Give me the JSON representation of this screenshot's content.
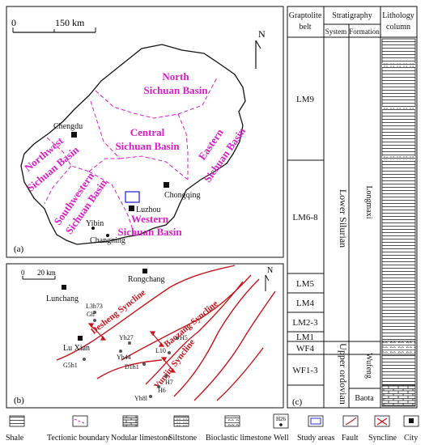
{
  "panel_a": {
    "label": "(a)",
    "scale_left": "0",
    "scale_right": "150 km",
    "north": "N",
    "basins": [
      {
        "line1": "North",
        "line2": "Sichuan Basin"
      },
      {
        "line1": "Central",
        "line2": "Sichuan Basin"
      },
      {
        "line1": "Eastern",
        "line2": "Sichuan Basin"
      },
      {
        "line1": "Northwest",
        "line2": "Sichuan Basin"
      },
      {
        "line1": "Southwestern",
        "line2": "Sichuan Basin"
      },
      {
        "line1": "Western",
        "line2": "Sichuan Basin"
      }
    ],
    "cities": [
      "Chengdu",
      "Chongqing",
      "Luzhou",
      "Yibin",
      "Changning"
    ]
  },
  "panel_b": {
    "label": "(b)",
    "scale_left": "0",
    "scale_right": "20 km",
    "north": "N",
    "cities": [
      "Rongchang",
      "Lunchang",
      "Lu Xian"
    ],
    "synclines": [
      "Desheng Syncline",
      "Baozang Syncline",
      "Yunjin Syncline"
    ],
    "wells": [
      "L3h73",
      "Gh",
      "Yh27",
      "Yh44",
      "L10",
      "H5",
      "D1h1",
      "G5h1",
      "H7",
      "H6",
      "Yh8l"
    ]
  },
  "panel_c": {
    "label": "(c)",
    "headers": {
      "graptolite": [
        "Graptolite",
        "belt"
      ],
      "stratigraphy": "Stratigraphy",
      "system": "System",
      "formation": "Formation",
      "lithology": [
        "Lithology",
        "column"
      ]
    },
    "belts": [
      "LM9",
      "LM6-8",
      "LM5",
      "LM4",
      "LM2-3",
      "LM1",
      "WF4",
      "WF1-3"
    ],
    "systems": [
      "Lower Silurian",
      "Upper ordovian"
    ],
    "formations": [
      "Longmaxi",
      "Wufeng",
      "Baota"
    ]
  },
  "legend": [
    "Shale",
    "Tectionic boundary",
    "Nodular limestone",
    "Siltstone",
    "Bioclastic limestone",
    "Well",
    "Study areas",
    "Fault",
    "Syncline",
    "City"
  ],
  "legend_well_code": "H26",
  "colors": {
    "basin_text": "#d81fc8",
    "fault": "#c4161c",
    "study_area": "#2b2bd6"
  }
}
